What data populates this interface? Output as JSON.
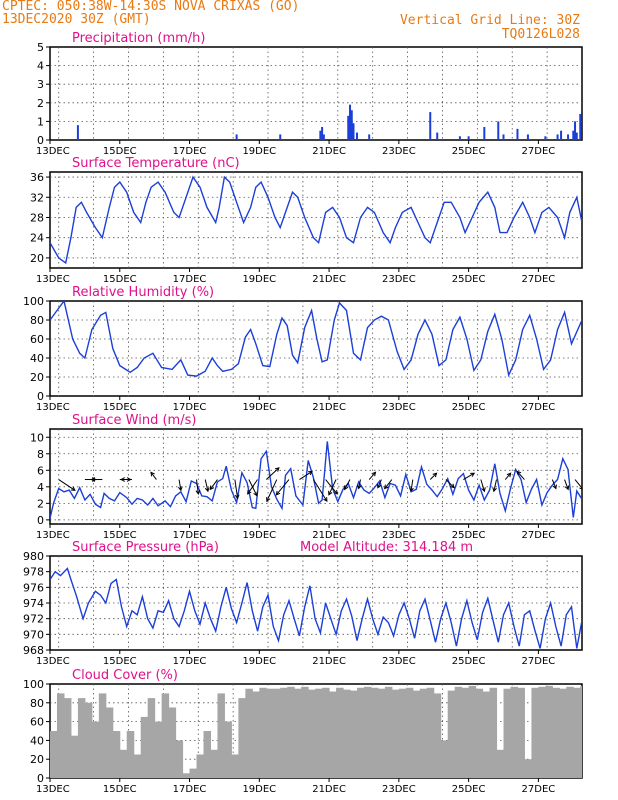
{
  "header": {
    "line1_left": "CPTEC:  050:38W-14:30S  NOVA CRIXAS (GO)",
    "line2_left": "13DEC2020 30Z (GMT)",
    "line1_right": "Vertical Grid Line: 30Z",
    "line2_right": "TQ0126L028"
  },
  "colors": {
    "header": "#e87a14",
    "title": "#e0108a",
    "series": "#1c3fd8",
    "cloud": "#a6a6a6",
    "grid": "#000000"
  },
  "x_axis": {
    "ticks": [
      {
        "day": 13,
        "label": "13DEC"
      },
      {
        "day": 15,
        "label": "15DEC"
      },
      {
        "day": 17,
        "label": "17DEC"
      },
      {
        "day": 19,
        "label": "19DEC"
      },
      {
        "day": 21,
        "label": "21DEC"
      },
      {
        "day": 23,
        "label": "23DEC"
      },
      {
        "day": 25,
        "label": "25DEC"
      },
      {
        "day": 27,
        "label": "27DEC"
      }
    ],
    "range_days": [
      13,
      28.25
    ]
  },
  "chart_data": [
    {
      "type": "bar",
      "title": "Precipitation (mm/h)",
      "ylim": [
        0,
        5
      ],
      "yticks": [
        0,
        1,
        2,
        3,
        4,
        5
      ],
      "bars": [
        {
          "x": 13.8,
          "y": 0.8
        },
        {
          "x": 18.35,
          "y": 0.3
        },
        {
          "x": 19.6,
          "y": 0.3
        },
        {
          "x": 20.75,
          "y": 0.5
        },
        {
          "x": 20.8,
          "y": 0.7
        },
        {
          "x": 20.85,
          "y": 0.3
        },
        {
          "x": 21.55,
          "y": 1.3
        },
        {
          "x": 21.6,
          "y": 1.9
        },
        {
          "x": 21.65,
          "y": 1.6
        },
        {
          "x": 21.7,
          "y": 0.9
        },
        {
          "x": 21.8,
          "y": 0.4
        },
        {
          "x": 22.15,
          "y": 0.3
        },
        {
          "x": 23.9,
          "y": 1.5
        },
        {
          "x": 24.1,
          "y": 0.4
        },
        {
          "x": 24.75,
          "y": 0.2
        },
        {
          "x": 25.0,
          "y": 0.2
        },
        {
          "x": 25.45,
          "y": 0.7
        },
        {
          "x": 25.85,
          "y": 1.0
        },
        {
          "x": 26.0,
          "y": 0.3
        },
        {
          "x": 26.4,
          "y": 0.6
        },
        {
          "x": 26.7,
          "y": 0.3
        },
        {
          "x": 27.2,
          "y": 0.2
        },
        {
          "x": 27.55,
          "y": 0.3
        },
        {
          "x": 27.65,
          "y": 0.5
        },
        {
          "x": 27.85,
          "y": 0.3
        },
        {
          "x": 28.0,
          "y": 0.5
        },
        {
          "x": 28.05,
          "y": 1.0
        },
        {
          "x": 28.1,
          "y": 0.4
        },
        {
          "x": 28.2,
          "y": 1.4
        }
      ]
    },
    {
      "type": "line",
      "title": "Surface Temperature (nC)",
      "ylim": [
        18,
        37
      ],
      "yticks": [
        20,
        24,
        28,
        32,
        36
      ],
      "x": [
        13.0,
        13.25,
        13.45,
        13.6,
        13.75,
        13.9,
        14.05,
        14.3,
        14.5,
        14.7,
        14.85,
        15.0,
        15.2,
        15.4,
        15.6,
        15.75,
        15.9,
        16.1,
        16.3,
        16.55,
        16.7,
        16.9,
        17.1,
        17.3,
        17.5,
        17.75,
        17.85,
        18.0,
        18.15,
        18.35,
        18.55,
        18.75,
        18.9,
        19.05,
        19.25,
        19.45,
        19.6,
        19.8,
        19.95,
        20.1,
        20.3,
        20.55,
        20.7,
        20.9,
        21.1,
        21.3,
        21.5,
        21.7,
        21.9,
        22.1,
        22.3,
        22.55,
        22.75,
        22.9,
        23.1,
        23.35,
        23.55,
        23.75,
        23.9,
        24.1,
        24.3,
        24.5,
        24.75,
        24.9,
        25.1,
        25.3,
        25.55,
        25.75,
        25.9,
        26.1,
        26.3,
        26.55,
        26.75,
        26.9,
        27.1,
        27.3,
        27.55,
        27.75,
        27.9,
        28.1,
        28.25
      ],
      "y": [
        23,
        20,
        19,
        24,
        30,
        31,
        29,
        26,
        24,
        30,
        34,
        35,
        33,
        29,
        27,
        31,
        34,
        35,
        33,
        29,
        28,
        32,
        36,
        34,
        30,
        27,
        30,
        36,
        35,
        31,
        27,
        30,
        34,
        35,
        32,
        28,
        26,
        30,
        33,
        32,
        28,
        24,
        23,
        29,
        30,
        28,
        24,
        23,
        28,
        30,
        29,
        25,
        23,
        26,
        29,
        30,
        27,
        24,
        23,
        27,
        31,
        31,
        28,
        25,
        28,
        31,
        33,
        30,
        25,
        25,
        28,
        31,
        28,
        25,
        29,
        30,
        28,
        24,
        29,
        32,
        27
      ]
    },
    {
      "type": "line",
      "title": "Relative Humidity (%)",
      "ylim": [
        0,
        100
      ],
      "yticks": [
        0,
        20,
        40,
        60,
        80,
        100
      ],
      "x": [
        13.0,
        13.2,
        13.4,
        13.65,
        13.85,
        14.0,
        14.2,
        14.45,
        14.6,
        14.8,
        15.0,
        15.3,
        15.5,
        15.7,
        15.95,
        16.2,
        16.5,
        16.75,
        16.95,
        17.2,
        17.45,
        17.65,
        17.8,
        17.95,
        18.2,
        18.4,
        18.6,
        18.75,
        18.9,
        19.1,
        19.3,
        19.5,
        19.65,
        19.8,
        19.95,
        20.1,
        20.3,
        20.5,
        20.65,
        20.8,
        20.95,
        21.15,
        21.3,
        21.5,
        21.7,
        21.9,
        22.1,
        22.3,
        22.5,
        22.7,
        22.95,
        23.15,
        23.35,
        23.55,
        23.75,
        23.95,
        24.15,
        24.35,
        24.55,
        24.75,
        24.95,
        25.15,
        25.35,
        25.55,
        25.75,
        25.95,
        26.15,
        26.35,
        26.55,
        26.75,
        26.95,
        27.15,
        27.35,
        27.55,
        27.75,
        27.95,
        28.25
      ],
      "y": [
        80,
        90,
        100,
        60,
        45,
        40,
        70,
        85,
        88,
        50,
        32,
        25,
        30,
        40,
        45,
        30,
        28,
        38,
        22,
        21,
        26,
        40,
        32,
        26,
        28,
        34,
        62,
        70,
        55,
        32,
        31,
        65,
        82,
        74,
        43,
        35,
        72,
        90,
        60,
        36,
        38,
        80,
        98,
        90,
        45,
        38,
        72,
        80,
        84,
        80,
        47,
        28,
        38,
        65,
        80,
        65,
        32,
        38,
        70,
        83,
        60,
        27,
        38,
        68,
        86,
        60,
        22,
        38,
        70,
        85,
        60,
        28,
        38,
        70,
        88,
        55,
        80
      ]
    },
    {
      "type": "line",
      "title": "Surface Wind (m/s)",
      "ylim": [
        -0.5,
        11
      ],
      "yticks": [
        0,
        2,
        4,
        6,
        8,
        10
      ],
      "x": [
        13.0,
        13.1,
        13.25,
        13.4,
        13.55,
        13.7,
        13.85,
        14.0,
        14.15,
        14.3,
        14.45,
        14.55,
        14.7,
        14.85,
        15.0,
        15.2,
        15.35,
        15.5,
        15.65,
        15.8,
        15.95,
        16.1,
        16.3,
        16.45,
        16.6,
        16.75,
        16.9,
        17.05,
        17.2,
        17.35,
        17.5,
        17.65,
        17.8,
        17.95,
        18.05,
        18.2,
        18.35,
        18.5,
        18.65,
        18.8,
        18.9,
        19.05,
        19.2,
        19.35,
        19.5,
        19.65,
        19.75,
        19.9,
        20.05,
        20.25,
        20.4,
        20.55,
        20.7,
        20.8,
        20.95,
        21.1,
        21.25,
        21.4,
        21.55,
        21.7,
        21.85,
        22.0,
        22.15,
        22.3,
        22.45,
        22.6,
        22.75,
        22.9,
        23.05,
        23.2,
        23.35,
        23.5,
        23.65,
        23.8,
        23.95,
        24.1,
        24.25,
        24.4,
        24.55,
        24.7,
        24.85,
        25.0,
        25.15,
        25.3,
        25.45,
        25.6,
        25.75,
        25.9,
        26.05,
        26.2,
        26.35,
        26.5,
        26.65,
        26.8,
        26.95,
        27.1,
        27.25,
        27.4,
        27.55,
        27.7,
        27.85,
        28.0,
        28.1,
        28.25
      ],
      "y": [
        0.2,
        2,
        3.8,
        3.4,
        3.6,
        2.6,
        3.9,
        2.4,
        3.1,
        1.9,
        1.5,
        3.2,
        2.6,
        2.3,
        3.3,
        2.7,
        1.9,
        2.6,
        2.4,
        1.8,
        2.6,
        1.7,
        2.3,
        1.6,
        2.9,
        3.4,
        2.2,
        4.7,
        4.4,
        2.9,
        2.8,
        2.3,
        4.6,
        5,
        6.5,
        3.6,
        2.1,
        5.7,
        4.5,
        1.5,
        1.4,
        7.4,
        8.3,
        4,
        2.5,
        1.4,
        5.4,
        6.2,
        2.9,
        1.8,
        7.2,
        5.1,
        2,
        2.4,
        9.5,
        3.8,
        2.2,
        3.7,
        4.4,
        2.7,
        4.6,
        3.6,
        3.2,
        3.9,
        4.7,
        2.7,
        4.4,
        4.2,
        2.9,
        5.5,
        3.4,
        3.7,
        6.4,
        4.3,
        3.6,
        2.8,
        3.8,
        5,
        3.1,
        5,
        5.6,
        3.6,
        2.4,
        4.2,
        2.4,
        3.6,
        6.8,
        3.2,
        1.1,
        3.8,
        6.1,
        4.9,
        2.1,
        3.7,
        4.9,
        1.8,
        3.3,
        4.2,
        4.9,
        7.4,
        6.1,
        0.3,
        3.5,
        2.5
      ],
      "arrows": [
        {
          "x": 13.25,
          "u": 1.8,
          "v": -1.2
        },
        {
          "x": 14.0,
          "u": 1.2,
          "v": 0
        },
        {
          "x": 14.5,
          "u": -1.2,
          "v": 0
        },
        {
          "x": 15.0,
          "u": 1.2,
          "v": 0
        },
        {
          "x": 15.35,
          "u": -1.2,
          "v": 0
        },
        {
          "x": 16.05,
          "u": -0.6,
          "v": 0.8
        },
        {
          "x": 16.7,
          "u": 0.2,
          "v": -1.2
        },
        {
          "x": 17.2,
          "u": 0.2,
          "v": -1.6
        },
        {
          "x": 17.45,
          "u": 0.3,
          "v": -1.3
        },
        {
          "x": 17.8,
          "u": -0.8,
          "v": -1.1
        },
        {
          "x": 18.3,
          "u": 0.3,
          "v": -2.1
        },
        {
          "x": 18.7,
          "u": 0.9,
          "v": -1.8
        },
        {
          "x": 18.95,
          "u": -1.1,
          "v": -1.6
        },
        {
          "x": 19.2,
          "u": 1.4,
          "v": 1.3
        },
        {
          "x": 19.5,
          "u": -1.1,
          "v": -2.4
        },
        {
          "x": 19.85,
          "u": -1.4,
          "v": -1.7
        },
        {
          "x": 20.15,
          "u": 1.4,
          "v": 0.9
        },
        {
          "x": 20.55,
          "u": 1.5,
          "v": -2.4
        },
        {
          "x": 20.9,
          "u": 1.3,
          "v": -1.6
        },
        {
          "x": 21.2,
          "u": -0.8,
          "v": -1.7
        },
        {
          "x": 21.6,
          "u": -0.6,
          "v": -1.1
        },
        {
          "x": 21.9,
          "u": -0.2,
          "v": -1.0
        },
        {
          "x": 22.15,
          "u": 0.7,
          "v": 0.8
        },
        {
          "x": 22.5,
          "u": -0.4,
          "v": -0.9
        },
        {
          "x": 22.8,
          "u": -0.8,
          "v": -1.0
        },
        {
          "x": 23.4,
          "u": -0.2,
          "v": -1.3
        },
        {
          "x": 23.9,
          "u": 0.7,
          "v": 0.7
        },
        {
          "x": 24.35,
          "u": 0.9,
          "v": -0.9
        },
        {
          "x": 24.85,
          "u": 1.2,
          "v": 0.7
        },
        {
          "x": 25.35,
          "u": 0.4,
          "v": -1.3
        },
        {
          "x": 25.8,
          "u": -0.3,
          "v": -1.3
        },
        {
          "x": 26.05,
          "u": 0.6,
          "v": 0.7
        },
        {
          "x": 26.6,
          "u": -0.8,
          "v": 0.9
        },
        {
          "x": 27.4,
          "u": 0.4,
          "v": -1.0
        },
        {
          "x": 27.75,
          "u": 0.4,
          "v": -1.1
        },
        {
          "x": 28.05,
          "u": 0.9,
          "v": -1.1
        }
      ]
    },
    {
      "type": "line",
      "title": "Surface Pressure (hPa)",
      "annotation": "Model Altitude: 314.184 m",
      "ylim": [
        968,
        980
      ],
      "yticks": [
        968,
        970,
        972,
        974,
        976,
        978,
        980
      ],
      "x": [
        13.0,
        13.15,
        13.3,
        13.5,
        13.6,
        13.75,
        13.95,
        14.1,
        14.3,
        14.45,
        14.6,
        14.75,
        14.9,
        15.05,
        15.2,
        15.35,
        15.5,
        15.65,
        15.8,
        15.95,
        16.1,
        16.25,
        16.4,
        16.55,
        16.7,
        16.85,
        17.0,
        17.15,
        17.3,
        17.45,
        17.6,
        17.75,
        17.9,
        18.05,
        18.2,
        18.35,
        18.5,
        18.65,
        18.8,
        18.95,
        19.1,
        19.25,
        19.4,
        19.55,
        19.7,
        19.85,
        20.0,
        20.15,
        20.3,
        20.45,
        20.6,
        20.75,
        20.9,
        21.05,
        21.2,
        21.35,
        21.5,
        21.65,
        21.8,
        21.95,
        22.1,
        22.25,
        22.4,
        22.55,
        22.7,
        22.85,
        23.0,
        23.15,
        23.3,
        23.45,
        23.6,
        23.75,
        23.9,
        24.05,
        24.2,
        24.35,
        24.5,
        24.65,
        24.8,
        24.95,
        25.1,
        25.25,
        25.4,
        25.55,
        25.7,
        25.85,
        26.0,
        26.15,
        26.3,
        26.45,
        26.6,
        26.75,
        26.9,
        27.05,
        27.2,
        27.35,
        27.5,
        27.65,
        27.8,
        27.95,
        28.1,
        28.25
      ],
      "y": [
        977,
        978,
        977.5,
        978.4,
        977,
        975,
        972,
        974,
        975.5,
        975,
        974,
        976.5,
        977,
        973.5,
        971,
        973,
        972.5,
        974.8,
        972,
        970.8,
        973,
        972.8,
        974.3,
        972,
        971,
        973,
        975.5,
        973,
        971.3,
        974,
        972,
        970.4,
        973.5,
        976,
        973.3,
        971.5,
        974,
        976.6,
        973,
        970.4,
        973.5,
        975,
        971,
        969.2,
        972.5,
        974.3,
        972,
        969.8,
        973.5,
        976.2,
        972,
        970.2,
        974,
        972,
        970,
        973,
        974.5,
        972.3,
        969.2,
        972,
        974.5,
        972,
        970,
        972.2,
        971.5,
        969.8,
        972.5,
        974,
        972,
        969.5,
        973,
        974.5,
        971.8,
        969,
        972,
        974,
        971.5,
        968.5,
        972,
        974.3,
        971.5,
        969.3,
        972.8,
        974.6,
        971.8,
        969,
        972.5,
        974,
        971,
        968.5,
        972.5,
        973,
        970.5,
        968.2,
        972,
        974,
        971,
        968.5,
        972.5,
        973.5,
        968.2,
        971.8
      ]
    },
    {
      "type": "bar",
      "title": "Cloud Cover (%)",
      "ylim": [
        0,
        100
      ],
      "yticks": [
        0,
        20,
        40,
        60,
        80,
        100
      ],
      "x": [
        13.0,
        13.2,
        13.4,
        13.6,
        13.8,
        14.0,
        14.2,
        14.4,
        14.6,
        14.8,
        15.0,
        15.2,
        15.4,
        15.6,
        15.8,
        16.0,
        16.2,
        16.4,
        16.6,
        16.8,
        17.0,
        17.2,
        17.4,
        17.6,
        17.8,
        18.0,
        18.2,
        18.4,
        18.6,
        18.8,
        19.0,
        19.2,
        19.4,
        19.6,
        19.8,
        20.0,
        20.2,
        20.4,
        20.6,
        20.8,
        21.0,
        21.2,
        21.4,
        21.6,
        21.8,
        22.0,
        22.2,
        22.4,
        22.6,
        22.8,
        23.0,
        23.2,
        23.4,
        23.6,
        23.8,
        24.0,
        24.2,
        24.4,
        24.6,
        24.8,
        25.0,
        25.2,
        25.4,
        25.6,
        25.8,
        26.0,
        26.2,
        26.4,
        26.6,
        26.8,
        27.0,
        27.2,
        27.4,
        27.6,
        27.8,
        28.0,
        28.2
      ],
      "y": [
        50,
        90,
        85,
        45,
        85,
        80,
        60,
        90,
        75,
        50,
        30,
        50,
        25,
        65,
        85,
        60,
        90,
        75,
        40,
        5,
        10,
        25,
        50,
        30,
        90,
        60,
        25,
        85,
        95,
        92,
        96,
        95,
        95,
        96,
        97,
        95,
        97,
        94,
        95,
        96,
        92,
        96,
        94,
        93,
        96,
        97,
        96,
        95,
        97,
        94,
        95,
        96,
        93,
        95,
        96,
        90,
        40,
        93,
        97,
        96,
        98,
        95,
        92,
        96,
        30,
        95,
        97,
        96,
        20,
        96,
        97,
        98,
        96,
        95,
        97,
        96,
        98
      ]
    }
  ]
}
